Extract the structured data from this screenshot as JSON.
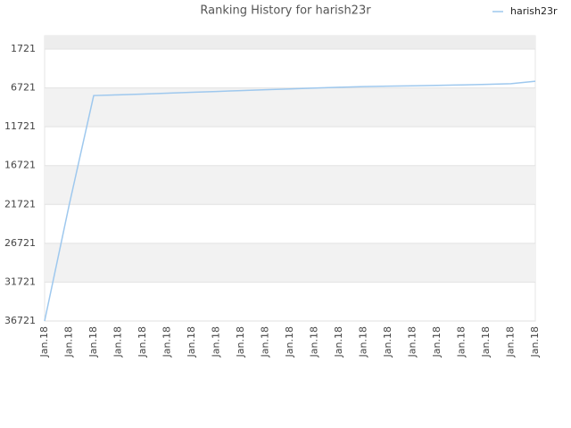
{
  "chart_data": {
    "type": "line",
    "title": "Ranking History for harish23r",
    "categories": [
      "Jan.18",
      "Jan.18",
      "Jan.18",
      "Jan.18",
      "Jan.18",
      "Jan.18",
      "Jan.18",
      "Jan.18",
      "Jan.18",
      "Jan.18",
      "Jan.18",
      "Jan.18",
      "Jan.18",
      "Jan.18",
      "Jan.18",
      "Jan.18",
      "Jan.18",
      "Jan.18",
      "Jan.18",
      "Jan.18",
      "Jan.18"
    ],
    "series": [
      {
        "name": "harish23r",
        "color": "#9ec8ee",
        "values": [
          36721,
          21800,
          7710,
          7610,
          7510,
          7400,
          7290,
          7180,
          7070,
          6960,
          6850,
          6740,
          6640,
          6560,
          6500,
          6450,
          6400,
          6340,
          6270,
          6180,
          5870
        ]
      }
    ],
    "ylim": [
      0,
      36721
    ],
    "y_inverted": true,
    "yticks": [
      1721,
      6721,
      11721,
      16721,
      21721,
      26721,
      31721,
      36721
    ],
    "grid": true,
    "legend": "top-right"
  }
}
